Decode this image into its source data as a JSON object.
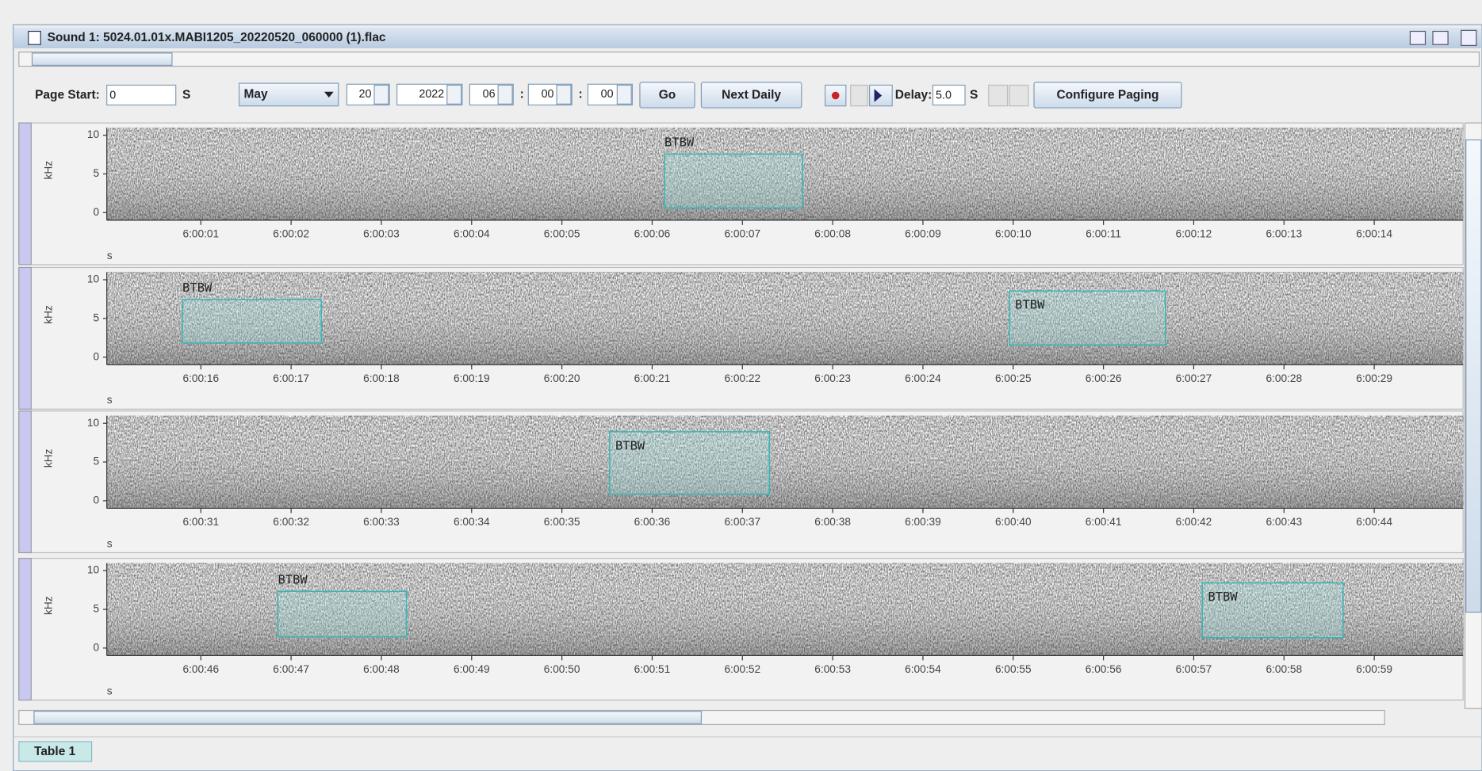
{
  "window": {
    "title": "Sound 1: 5024.01.01x.MABI1205_20220520_060000 (1).flac"
  },
  "toolbar": {
    "page_start_label": "Page Start:",
    "page_start_value": "0",
    "unit": "S",
    "month": "May",
    "day": "20",
    "year": "2022",
    "hour": "06",
    "minute": "00",
    "second": "00",
    "time_separator": ":",
    "go": "Go",
    "next_daily": "Next Daily",
    "delay_label": "Delay:",
    "delay_value": "5.0",
    "configure": "Configure Paging"
  },
  "rows": [
    {
      "y_label": "kHz",
      "yticks": [
        10,
        5,
        0
      ],
      "x_unit": "s",
      "xticks": [
        "6:00:01",
        "6:00:02",
        "6:00:03",
        "6:00:04",
        "6:00:05",
        "6:00:06",
        "6:00:07",
        "6:00:08",
        "6:00:09",
        "6:00:10",
        "6:00:11",
        "6:00:12",
        "6:00:13",
        "6:00:14"
      ],
      "annotations": [
        {
          "label": "BTBW"
        }
      ]
    },
    {
      "y_label": "kHz",
      "yticks": [
        10,
        5,
        0
      ],
      "x_unit": "s",
      "xticks": [
        "6:00:16",
        "6:00:17",
        "6:00:18",
        "6:00:19",
        "6:00:20",
        "6:00:21",
        "6:00:22",
        "6:00:23",
        "6:00:24",
        "6:00:25",
        "6:00:26",
        "6:00:27",
        "6:00:28",
        "6:00:29"
      ],
      "annotations": [
        {
          "label": "BTBW"
        },
        {
          "label": "BTBW"
        }
      ]
    },
    {
      "y_label": "kHz",
      "yticks": [
        10,
        5,
        0
      ],
      "x_unit": "s",
      "xticks": [
        "6:00:31",
        "6:00:32",
        "6:00:33",
        "6:00:34",
        "6:00:35",
        "6:00:36",
        "6:00:37",
        "6:00:38",
        "6:00:39",
        "6:00:40",
        "6:00:41",
        "6:00:42",
        "6:00:43",
        "6:00:44"
      ],
      "annotations": [
        {
          "label": "BTBW"
        }
      ]
    },
    {
      "y_label": "kHz",
      "yticks": [
        10,
        5,
        0
      ],
      "x_unit": "s",
      "xticks": [
        "6:00:46",
        "6:00:47",
        "6:00:48",
        "6:00:49",
        "6:00:50",
        "6:00:51",
        "6:00:52",
        "6:00:53",
        "6:00:54",
        "6:00:55",
        "6:00:56",
        "6:00:57",
        "6:00:58",
        "6:00:59"
      ],
      "annotations": [
        {
          "label": "BTBW"
        },
        {
          "label": "BTBW"
        }
      ]
    }
  ],
  "tabs": [
    "Table 1"
  ]
}
